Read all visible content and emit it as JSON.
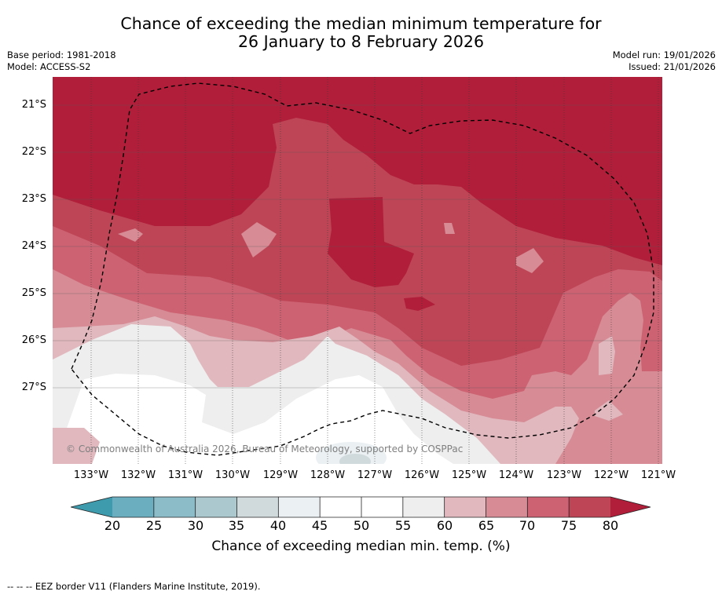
{
  "title": {
    "line1": "Chance of exceeding the median minimum temperature for",
    "line2": "26 January to 8 February 2026"
  },
  "meta": {
    "base_period": "Base period: 1981-2018",
    "model": "Model: ACCESS-S2",
    "model_run": "Model run: 19/01/2026",
    "issued": "Issued: 21/01/2026"
  },
  "map": {
    "lat_labels": [
      "21°S",
      "22°S",
      "23°S",
      "24°S",
      "25°S",
      "26°S",
      "27°S"
    ],
    "lon_labels": [
      "133°W",
      "132°W",
      "131°W",
      "130°W",
      "129°W",
      "128°W",
      "127°W",
      "126°W",
      "125°W",
      "124°W",
      "123°W",
      "122°W",
      "121°W"
    ],
    "copyright": "© Commonwealth of Australia 2026, Bureau of Meteorology, supported by COSPPac"
  },
  "colorbar": {
    "ticks": [
      "20",
      "25",
      "30",
      "35",
      "40",
      "45",
      "50",
      "55",
      "60",
      "65",
      "70",
      "75",
      "80"
    ],
    "colors": [
      "#3e9bae",
      "#6aaebf",
      "#8cbcc8",
      "#abc8cf",
      "#d0d9dc",
      "#ebf0f3",
      "#ffffff",
      "#ffffff",
      "#eeeeee",
      "#e0b8be",
      "#d68b95",
      "#cc6272",
      "#be4556",
      "#b01e3a"
    ],
    "label": "Chance of exceeding median min. temp. (%)"
  },
  "footer": "--  --  -- EEZ border V11 (Flanders Marine Institute, 2019)."
}
